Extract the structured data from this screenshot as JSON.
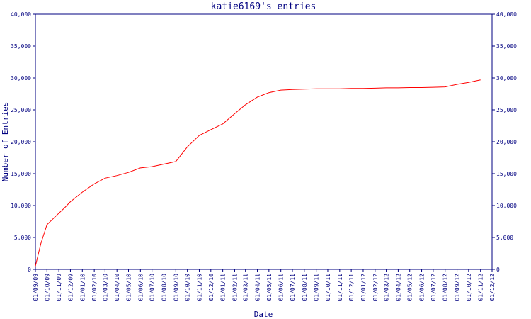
{
  "chart_data": {
    "type": "line",
    "title": "katie6169's entries",
    "xlabel": "Date",
    "ylabel": "Number of Entries",
    "ylim": [
      0,
      40000
    ],
    "yticks": [
      0,
      5000,
      10000,
      15000,
      20000,
      25000,
      30000,
      35000,
      40000
    ],
    "ytick_labels": [
      "0",
      "5,000",
      "10,000",
      "15,000",
      "20,000",
      "25,000",
      "30,000",
      "35,000",
      "40,000"
    ],
    "x_tick_labels": [
      "01/09/09",
      "01/10/09",
      "01/11/09",
      "01/12/09",
      "01/01/10",
      "01/02/10",
      "01/03/10",
      "01/04/10",
      "01/05/10",
      "01/06/10",
      "01/07/10",
      "01/08/10",
      "01/09/10",
      "01/10/10",
      "01/11/10",
      "01/12/10",
      "01/01/11",
      "01/02/11",
      "01/03/11",
      "01/04/11",
      "01/05/11",
      "01/06/11",
      "01/07/11",
      "01/08/11",
      "01/09/11",
      "01/10/11",
      "01/11/11",
      "01/12/11",
      "01/01/12",
      "01/02/12",
      "01/03/12",
      "01/04/12",
      "01/05/12",
      "01/06/12",
      "01/07/12",
      "01/08/12",
      "01/09/12",
      "01/10/12",
      "01/11/12",
      "01/12/12"
    ],
    "grid": false,
    "legend": "none",
    "series": [
      {
        "color": "#ff0000",
        "x": [
          "01/09/09",
          "15/09/09",
          "01/10/09",
          "01/11/09",
          "15/11/09",
          "01/12/09",
          "01/01/10",
          "01/02/10",
          "01/03/10",
          "01/04/10",
          "01/05/10",
          "01/06/10",
          "01/07/10",
          "01/08/10",
          "01/09/10",
          "01/10/10",
          "01/11/10",
          "01/12/10",
          "01/01/11",
          "01/02/11",
          "01/03/11",
          "01/04/11",
          "01/05/11",
          "01/06/11",
          "01/07/11",
          "01/08/11",
          "01/09/11",
          "01/10/11",
          "01/11/11",
          "01/12/11",
          "01/01/12",
          "01/02/12",
          "01/03/12",
          "01/04/12",
          "01/05/12",
          "01/06/12",
          "01/07/12",
          "01/08/12",
          "01/09/12",
          "01/10/12",
          "01/11/12"
        ],
        "y": [
          500,
          4000,
          7000,
          8800,
          9600,
          10600,
          12100,
          13400,
          14300,
          14700,
          15200,
          15900,
          16100,
          16500,
          16900,
          19200,
          21000,
          21900,
          22800,
          24400,
          25800,
          27000,
          27700,
          28100,
          28200,
          28250,
          28300,
          28300,
          28300,
          28350,
          28350,
          28400,
          28450,
          28450,
          28500,
          28500,
          28550,
          28600,
          29000,
          29300,
          29700
        ]
      }
    ]
  }
}
